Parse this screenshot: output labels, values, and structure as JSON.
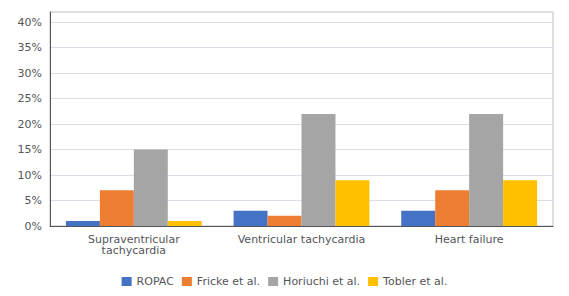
{
  "chart_data": {
    "type": "bar",
    "categories": [
      "Supraventricular\ntachycardia",
      "Ventricular tachycardia",
      "Heart failure"
    ],
    "series": [
      {
        "name": "ROPAC",
        "color": "#4472C4",
        "values": [
          1.0,
          3.0,
          3.0
        ]
      },
      {
        "name": "Fricke et al.",
        "color": "#ED7D31",
        "values": [
          7.0,
          2.0,
          7.0
        ]
      },
      {
        "name": "Horiuchi et al.",
        "color": "#A5A5A5",
        "values": [
          15.0,
          22.0,
          22.0
        ]
      },
      {
        "name": "Tobler et al.",
        "color": "#FFC000",
        "values": [
          1.0,
          9.0,
          9.0
        ]
      }
    ],
    "ylim": [
      0,
      42
    ],
    "yticks": [
      {
        "value": 0,
        "label": "0%"
      },
      {
        "value": 5,
        "label": "5%"
      },
      {
        "value": 10,
        "label": "10%"
      },
      {
        "value": 15,
        "label": "15%"
      },
      {
        "value": 20,
        "label": "20%"
      },
      {
        "value": 25,
        "label": "25%"
      },
      {
        "value": 30,
        "label": "30%"
      },
      {
        "value": 35,
        "label": "35%"
      },
      {
        "value": 40,
        "label": "40%"
      }
    ],
    "grid": true,
    "legend": "bottom"
  }
}
